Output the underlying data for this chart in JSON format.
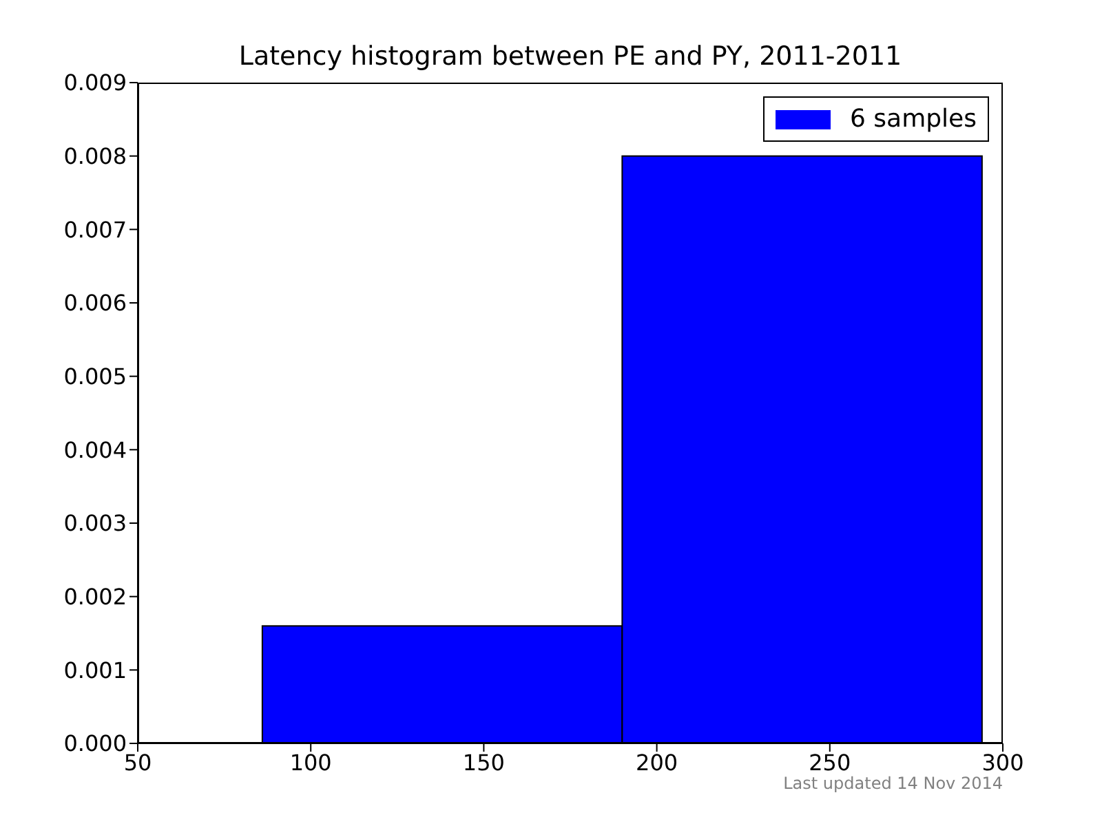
{
  "chart_data": {
    "type": "histogram",
    "title": "Latency histogram between PE and PY, 2011-2011",
    "bins": [
      86,
      190,
      294
    ],
    "series": [
      {
        "name": "6 samples",
        "color": "#0000ff",
        "values": [
          0.0016,
          0.008
        ]
      }
    ],
    "xlim": [
      50,
      300
    ],
    "xticks": [
      50,
      100,
      150,
      200,
      250,
      300
    ],
    "ylim": [
      0,
      0.009
    ],
    "yticks": [
      {
        "value": 0,
        "label": "0.000"
      },
      {
        "value": 0.001,
        "label": "0.001"
      },
      {
        "value": 0.002,
        "label": "0.002"
      },
      {
        "value": 0.003,
        "label": "0.003"
      },
      {
        "value": 0.004,
        "label": "0.004"
      },
      {
        "value": 0.005,
        "label": "0.005"
      },
      {
        "value": 0.006,
        "label": "0.006"
      },
      {
        "value": 0.007,
        "label": "0.007"
      },
      {
        "value": 0.008,
        "label": "0.008"
      },
      {
        "value": 0.009,
        "label": "0.009"
      }
    ],
    "legend": "top right",
    "grid": false,
    "annotations": [
      "Last updated 14 Nov 2014"
    ]
  }
}
